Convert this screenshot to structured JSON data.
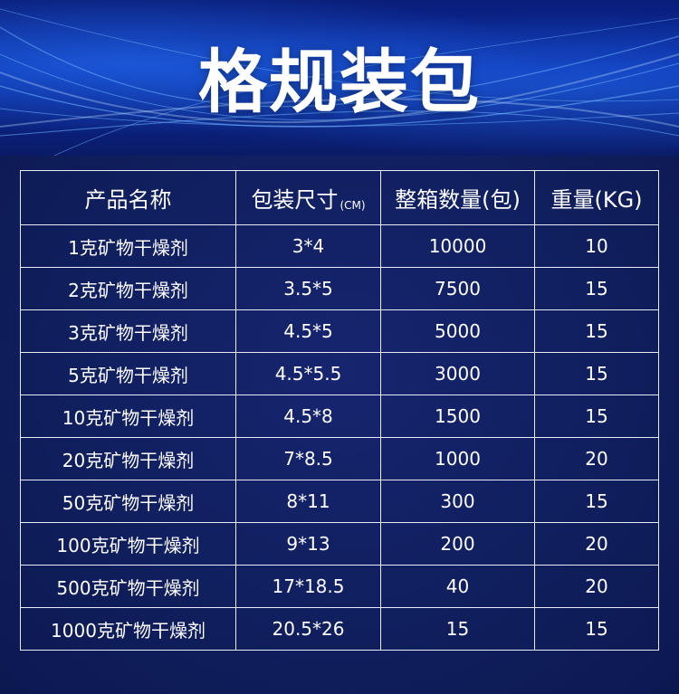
{
  "page": {
    "title": "格规装包"
  },
  "table": {
    "headers": {
      "name": "产品名称",
      "size": "包装尺寸",
      "size_unit": "(CM)",
      "quantity": "整箱数量(包)",
      "weight": "重量(KG)"
    },
    "rows": [
      {
        "name": "1克矿物干燥剂",
        "size": "3*4",
        "quantity": "10000",
        "weight": "10"
      },
      {
        "name": "2克矿物干燥剂",
        "size": "3.5*5",
        "quantity": "7500",
        "weight": "15"
      },
      {
        "name": "3克矿物干燥剂",
        "size": "4.5*5",
        "quantity": "5000",
        "weight": "15"
      },
      {
        "name": "5克矿物干燥剂",
        "size": "4.5*5.5",
        "quantity": "3000",
        "weight": "15"
      },
      {
        "name": "10克矿物干燥剂",
        "size": "4.5*8",
        "quantity": "1500",
        "weight": "15"
      },
      {
        "name": "20克矿物干燥剂",
        "size": "7*8.5",
        "quantity": "1000",
        "weight": "20"
      },
      {
        "name": "50克矿物干燥剂",
        "size": "8*11",
        "quantity": "300",
        "weight": "15"
      },
      {
        "name": "100克矿物干燥剂",
        "size": "9*13",
        "quantity": "200",
        "weight": "20"
      },
      {
        "name": "500克矿物干燥剂",
        "size": "17*18.5",
        "quantity": "40",
        "weight": "20"
      },
      {
        "name": "1000克矿物干燥剂",
        "size": "20.5*26",
        "quantity": "15",
        "weight": "15"
      }
    ]
  },
  "colors": {
    "background": "#0d1a56",
    "banner": "#0b2ea8",
    "grid": "#e9ecf7",
    "text": "#ffffff"
  }
}
